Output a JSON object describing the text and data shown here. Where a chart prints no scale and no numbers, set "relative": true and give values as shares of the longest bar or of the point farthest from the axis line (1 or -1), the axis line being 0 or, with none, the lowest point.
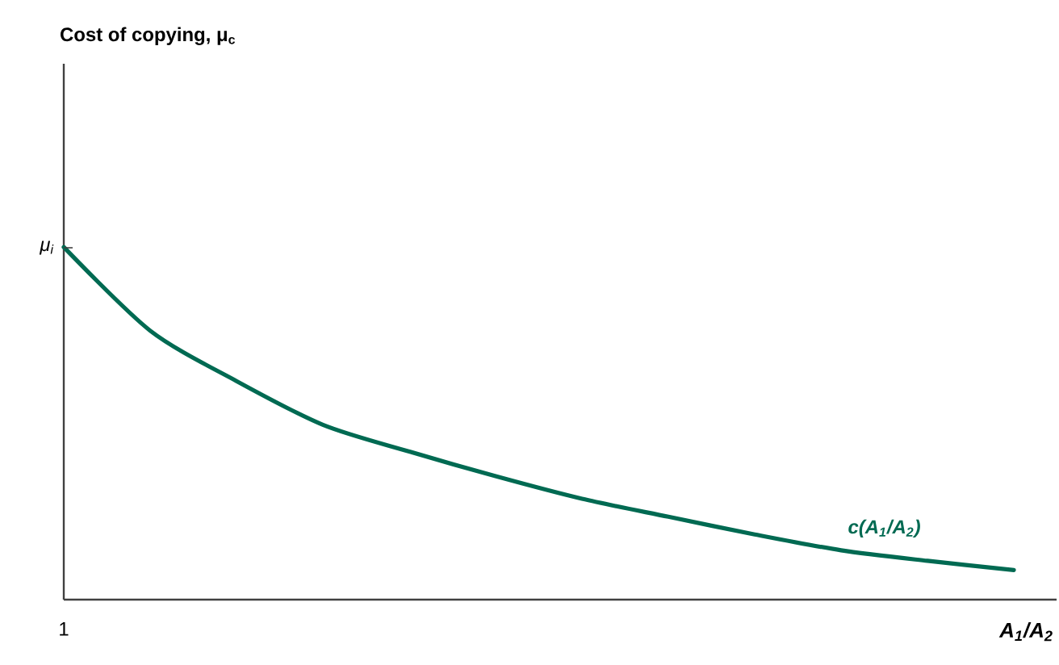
{
  "chart_data": {
    "type": "line",
    "relative": true,
    "title": "Cost of copying, μ$_{c}$",
    "xlabel": "A$_{1}$/A$_{2}$",
    "categories": [
      null,
      null,
      null,
      null,
      null,
      null,
      null,
      null,
      null,
      null,
      null,
      null
    ],
    "series": [
      {
        "name": "c(A$_{1}$/A$_{2}$)",
        "color": "#006a52",
        "values": [
          1.0,
          0.763,
          0.62,
          0.496,
          0.42,
          0.35,
          0.286,
          0.235,
          0.185,
          0.14,
          0.11,
          0.084
        ]
      }
    ],
    "annotations": [
      "1",
      "μ$_{i}$"
    ],
    "marker": "none",
    "line_style": "solid"
  }
}
